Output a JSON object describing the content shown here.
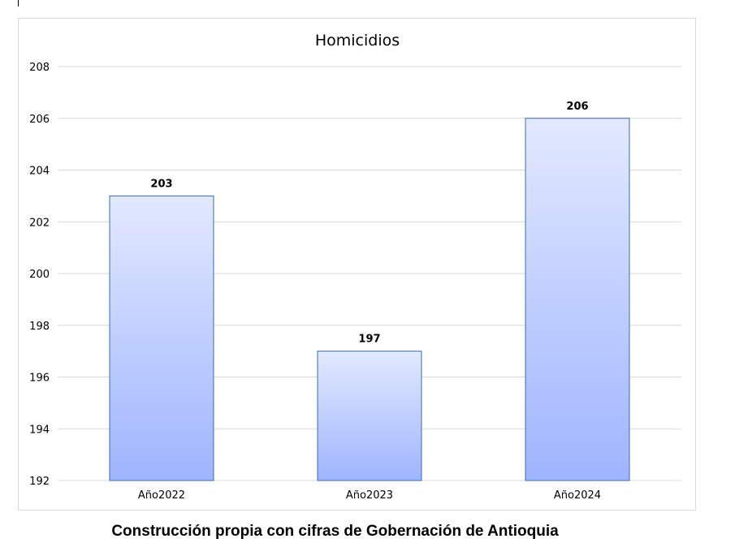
{
  "chart_data": {
    "type": "bar",
    "title": "Homicidios",
    "categories": [
      "Año2022",
      "Año2023",
      "Año2024"
    ],
    "values": [
      203,
      197,
      206
    ],
    "ylim": [
      192,
      208
    ],
    "yticks": [
      192,
      194,
      196,
      198,
      200,
      202,
      204,
      206,
      208
    ],
    "grid": true,
    "legend": "none",
    "data_labels": true,
    "colors": {
      "bar_top": "#e2e9ff",
      "bar_bottom": "#9fb4ff",
      "bar_border": "#3d6bb3",
      "grid": "#d9d9d9"
    }
  },
  "caption": "Construcción propia con cifras de Gobernación de Antioquia"
}
